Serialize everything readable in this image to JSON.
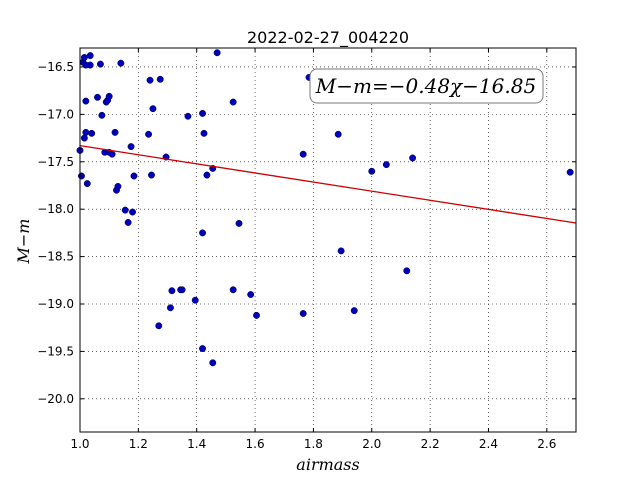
{
  "chart_data": {
    "type": "scatter",
    "title": "2022-02-27_004220",
    "xlabel": "airmass",
    "ylabel": "M−m",
    "xlim": [
      1.0,
      2.7
    ],
    "ylim": [
      -20.35,
      -16.3
    ],
    "y_inverted": true,
    "grid": true,
    "x_ticks": [
      1.0,
      1.2,
      1.4,
      1.6,
      1.8,
      2.0,
      2.2,
      2.4,
      2.6
    ],
    "x_tick_labels": [
      "1.0",
      "1.2",
      "1.4",
      "1.6",
      "1.8",
      "2.0",
      "2.2",
      "2.4",
      "2.6"
    ],
    "y_ticks": [
      -16.5,
      -17.0,
      -17.5,
      -18.0,
      -18.5,
      -19.0,
      -19.5,
      -20.0
    ],
    "y_tick_labels": [
      "−16.5",
      "−17.0",
      "−17.5",
      "−18.0",
      "−18.5",
      "−19.0",
      "−19.5",
      "−20.0"
    ],
    "fit": {
      "slope": -0.48,
      "intercept": -16.85,
      "color": "#cc0000"
    },
    "annotation": "M−m=−0.48χ−16.85",
    "point_color": "#0000bb",
    "points": [
      {
        "x": 1.0,
        "y": -17.38
      },
      {
        "x": 1.005,
        "y": -17.65
      },
      {
        "x": 1.01,
        "y": -16.45
      },
      {
        "x": 1.015,
        "y": -16.4
      },
      {
        "x": 1.015,
        "y": -17.25
      },
      {
        "x": 1.02,
        "y": -16.48
      },
      {
        "x": 1.02,
        "y": -16.86
      },
      {
        "x": 1.02,
        "y": -17.19
      },
      {
        "x": 1.025,
        "y": -17.73
      },
      {
        "x": 1.035,
        "y": -16.48
      },
      {
        "x": 1.035,
        "y": -16.38
      },
      {
        "x": 1.04,
        "y": -17.2
      },
      {
        "x": 1.06,
        "y": -16.82
      },
      {
        "x": 1.07,
        "y": -16.47
      },
      {
        "x": 1.075,
        "y": -17.01
      },
      {
        "x": 1.085,
        "y": -17.4
      },
      {
        "x": 1.09,
        "y": -16.87
      },
      {
        "x": 1.095,
        "y": -16.85
      },
      {
        "x": 1.1,
        "y": -16.81
      },
      {
        "x": 1.1,
        "y": -17.4
      },
      {
        "x": 1.11,
        "y": -17.42
      },
      {
        "x": 1.12,
        "y": -17.19
      },
      {
        "x": 1.125,
        "y": -17.8
      },
      {
        "x": 1.13,
        "y": -17.76
      },
      {
        "x": 1.14,
        "y": -16.46
      },
      {
        "x": 1.155,
        "y": -18.01
      },
      {
        "x": 1.165,
        "y": -18.14
      },
      {
        "x": 1.175,
        "y": -17.34
      },
      {
        "x": 1.18,
        "y": -18.03
      },
      {
        "x": 1.185,
        "y": -17.65
      },
      {
        "x": 1.235,
        "y": -17.21
      },
      {
        "x": 1.24,
        "y": -16.64
      },
      {
        "x": 1.245,
        "y": -17.64
      },
      {
        "x": 1.25,
        "y": -16.94
      },
      {
        "x": 1.27,
        "y": -19.23
      },
      {
        "x": 1.275,
        "y": -16.63
      },
      {
        "x": 1.295,
        "y": -17.45
      },
      {
        "x": 1.31,
        "y": -19.04
      },
      {
        "x": 1.315,
        "y": -18.86
      },
      {
        "x": 1.345,
        "y": -18.85
      },
      {
        "x": 1.35,
        "y": -18.85
      },
      {
        "x": 1.37,
        "y": -17.02
      },
      {
        "x": 1.395,
        "y": -18.96
      },
      {
        "x": 1.42,
        "y": -16.99
      },
      {
        "x": 1.42,
        "y": -18.25
      },
      {
        "x": 1.42,
        "y": -19.47
      },
      {
        "x": 1.425,
        "y": -17.2
      },
      {
        "x": 1.435,
        "y": -17.64
      },
      {
        "x": 1.455,
        "y": -17.57
      },
      {
        "x": 1.455,
        "y": -19.62
      },
      {
        "x": 1.47,
        "y": -16.35
      },
      {
        "x": 1.525,
        "y": -16.87
      },
      {
        "x": 1.525,
        "y": -18.85
      },
      {
        "x": 1.545,
        "y": -18.15
      },
      {
        "x": 1.585,
        "y": -18.9
      },
      {
        "x": 1.605,
        "y": -19.12
      },
      {
        "x": 1.765,
        "y": -17.42
      },
      {
        "x": 1.765,
        "y": -19.1
      },
      {
        "x": 1.785,
        "y": -16.61
      },
      {
        "x": 1.885,
        "y": -17.21
      },
      {
        "x": 1.895,
        "y": -18.44
      },
      {
        "x": 1.94,
        "y": -19.07
      },
      {
        "x": 2.0,
        "y": -17.6
      },
      {
        "x": 2.05,
        "y": -17.53
      },
      {
        "x": 2.12,
        "y": -18.65
      },
      {
        "x": 2.14,
        "y": -17.46
      },
      {
        "x": 2.68,
        "y": -17.61
      }
    ]
  }
}
